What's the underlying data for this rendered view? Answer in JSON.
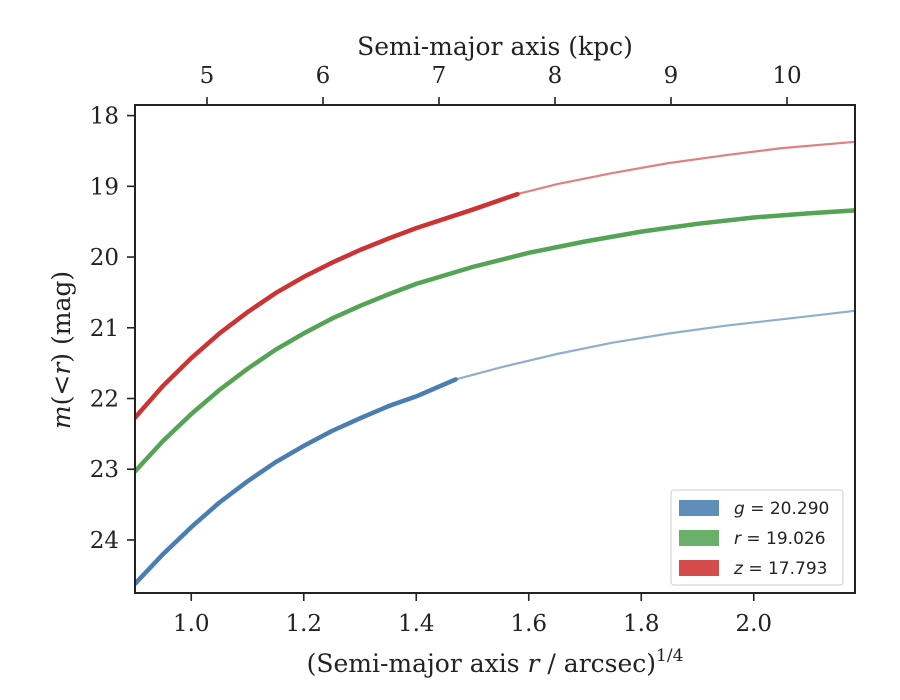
{
  "chart_data": {
    "type": "line",
    "xlabel_main": "(Semi-major axis ",
    "xlabel_var": "r",
    "xlabel_tail": " / arcsec)",
    "xlabel_exp": "1/4",
    "ylabel_var1": "m",
    "ylabel_mid": "(<",
    "ylabel_var2": "r",
    "ylabel_tail": ") (mag)",
    "top_xlabel": "Semi-major axis (kpc)",
    "xlim": [
      0.9,
      2.18
    ],
    "ylim": [
      24.75,
      17.85
    ],
    "y_inverted": true,
    "x_ticks": [
      "1.0",
      "1.2",
      "1.4",
      "1.6",
      "1.8",
      "2.0"
    ],
    "y_ticks": [
      "18",
      "19",
      "20",
      "21",
      "22",
      "23",
      "24"
    ],
    "top_ticks": [
      "5",
      "6",
      "7",
      "8",
      "9",
      "10"
    ],
    "legend_position": "lower-right",
    "series": [
      {
        "name": "g = 20.290",
        "legend_var": "g",
        "legend_value": "= 20.290",
        "color": "#4a7eb0",
        "measured_x": [
          0.9,
          0.95,
          1.0,
          1.05,
          1.1,
          1.15,
          1.2,
          1.25,
          1.3,
          1.35,
          1.4,
          1.47
        ],
        "measured_y": [
          24.62,
          24.2,
          23.82,
          23.47,
          23.17,
          22.9,
          22.67,
          22.46,
          22.28,
          22.11,
          21.97,
          21.73
        ],
        "model_x": [
          1.47,
          1.55,
          1.65,
          1.75,
          1.85,
          1.95,
          2.05,
          2.18
        ],
        "model_y": [
          21.73,
          21.56,
          21.37,
          21.21,
          21.08,
          20.97,
          20.88,
          20.76
        ]
      },
      {
        "name": "r = 19.026",
        "legend_var": "r",
        "legend_value": "= 19.026",
        "color": "#55a455",
        "measured_x": [
          0.9,
          0.95,
          1.0,
          1.05,
          1.1,
          1.15,
          1.2,
          1.25,
          1.3,
          1.35,
          1.4,
          1.5,
          1.6,
          1.7,
          1.8,
          1.9,
          2.0,
          2.1,
          2.18
        ],
        "measured_y": [
          23.03,
          22.6,
          22.22,
          21.88,
          21.58,
          21.31,
          21.08,
          20.87,
          20.69,
          20.53,
          20.38,
          20.14,
          19.94,
          19.78,
          19.64,
          19.53,
          19.44,
          19.38,
          19.34
        ],
        "model_x": [],
        "model_y": []
      },
      {
        "name": "z = 17.793",
        "legend_var": "z",
        "legend_value": "= 17.793",
        "color": "#cc3333",
        "measured_x": [
          0.9,
          0.95,
          1.0,
          1.05,
          1.1,
          1.15,
          1.2,
          1.25,
          1.3,
          1.35,
          1.4,
          1.45,
          1.5,
          1.58
        ],
        "measured_y": [
          22.27,
          21.82,
          21.43,
          21.08,
          20.78,
          20.51,
          20.28,
          20.08,
          19.9,
          19.74,
          19.59,
          19.46,
          19.33,
          19.11
        ],
        "model_x": [
          1.58,
          1.65,
          1.75,
          1.85,
          1.95,
          2.05,
          2.18
        ],
        "model_y": [
          19.11,
          18.97,
          18.81,
          18.67,
          18.56,
          18.46,
          18.37
        ]
      }
    ]
  }
}
